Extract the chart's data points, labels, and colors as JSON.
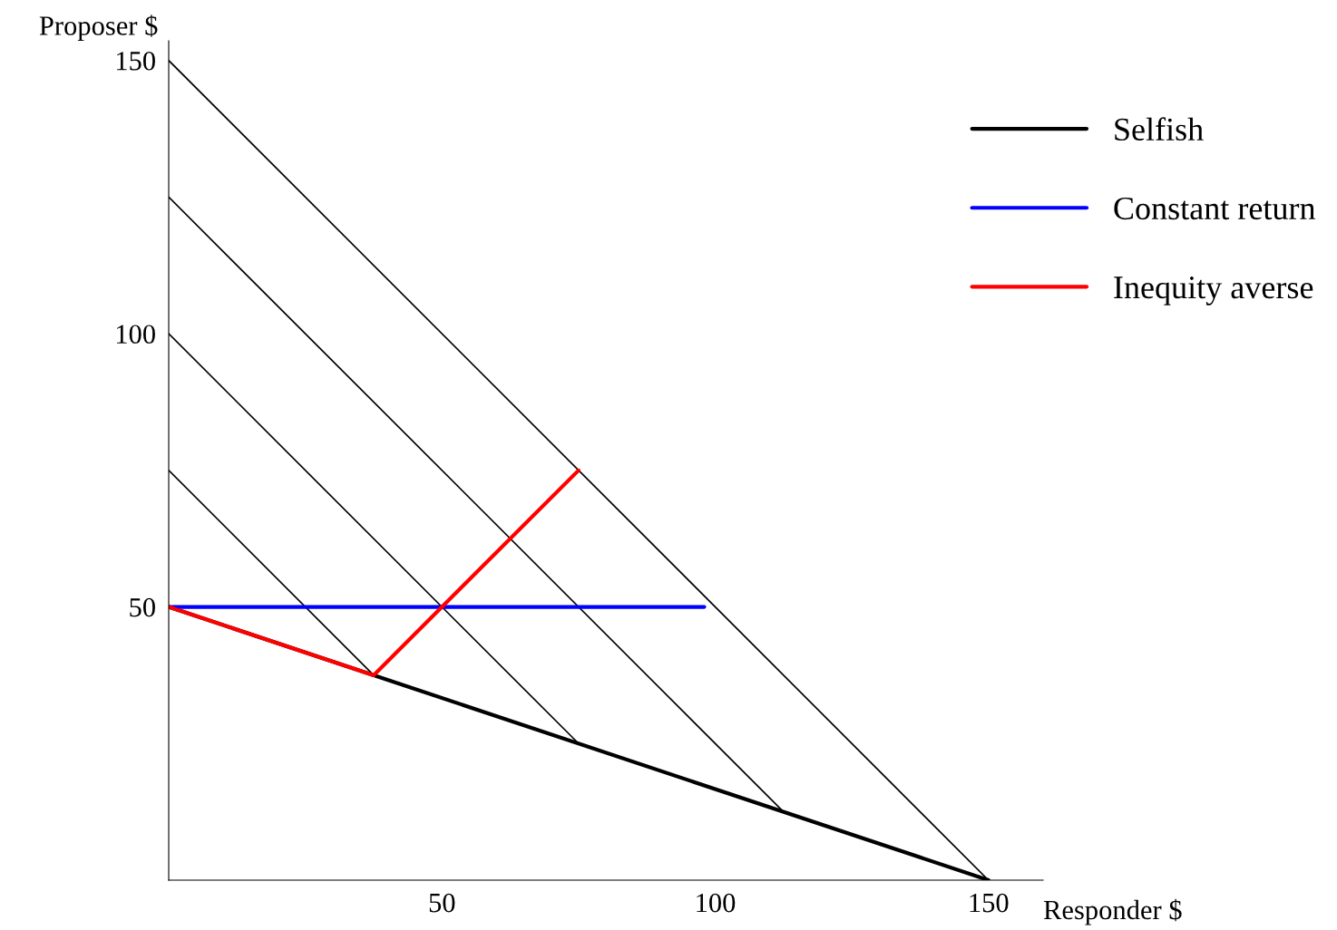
{
  "chart_data": {
    "type": "line",
    "xlabel": "Responder $",
    "ylabel": "Proposer $",
    "xlim": [
      0,
      160
    ],
    "ylim": [
      0,
      153.6
    ],
    "xticks": [
      50,
      100,
      150
    ],
    "yticks": [
      50,
      100,
      150
    ],
    "grid": false,
    "legend": "top right",
    "marker": "none",
    "line_style": "solid",
    "series": [
      {
        "color": "#000000",
        "x": [
          0,
          150
        ],
        "values": [
          150,
          0
        ]
      },
      {
        "color": "#000000",
        "x": [
          0,
          112.5
        ],
        "values": [
          125,
          12.5
        ]
      },
      {
        "color": "#000000",
        "x": [
          0,
          75
        ],
        "values": [
          100,
          25
        ]
      },
      {
        "color": "#000000",
        "x": [
          0,
          37.5
        ],
        "values": [
          75,
          37.5
        ]
      },
      {
        "name": "Selfish",
        "color": "#000000",
        "x": [
          0,
          150
        ],
        "values": [
          50,
          0
        ]
      },
      {
        "name": "Constant return",
        "color": "#0000ff",
        "x": [
          0,
          98
        ],
        "values": [
          50,
          50
        ]
      },
      {
        "name": "Inequity averse",
        "color": "#ff0000",
        "x": [
          0,
          37.5,
          75
        ],
        "values": [
          50,
          37.5,
          75
        ]
      }
    ]
  }
}
